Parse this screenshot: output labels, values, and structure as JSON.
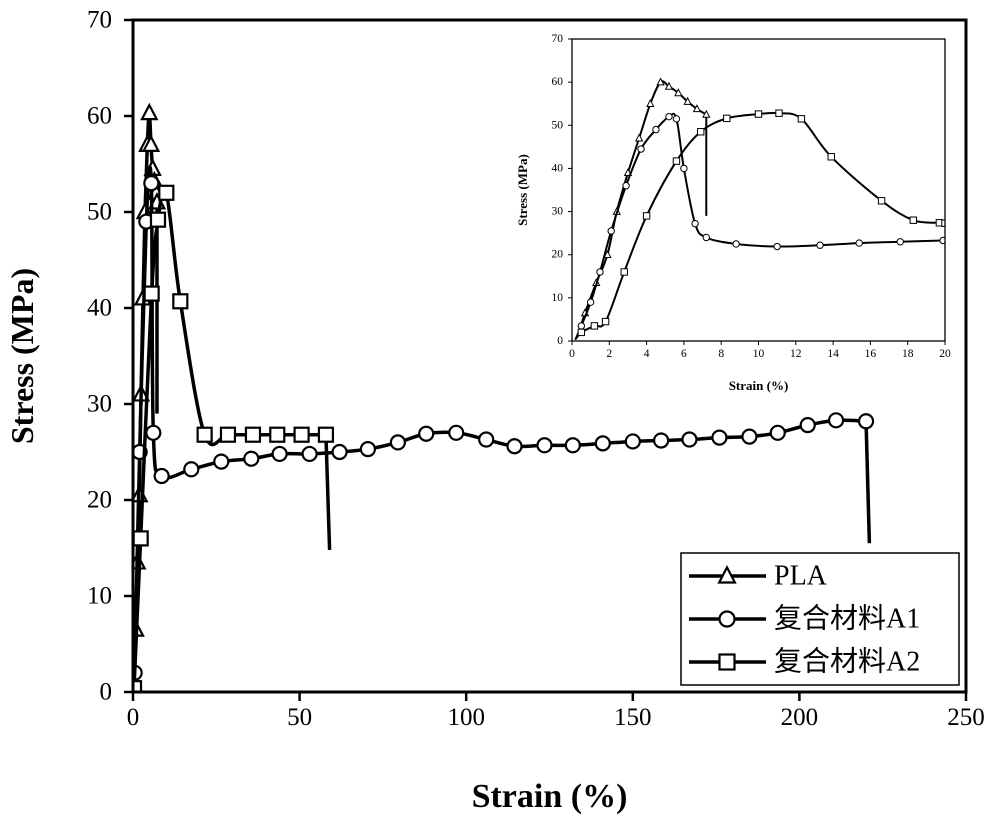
{
  "chart_data": [
    {
      "type": "line",
      "xlabel": "Strain (%)",
      "ylabel": "Stress (MPa)",
      "xlim": [
        0,
        250
      ],
      "ylim": [
        0,
        70
      ],
      "xticks": [
        0,
        50,
        100,
        150,
        200,
        250
      ],
      "yticks": [
        0,
        10,
        20,
        30,
        40,
        50,
        60,
        70
      ],
      "xtick_labels": [
        "0",
        "50",
        "100",
        "150",
        "200",
        "250"
      ],
      "ytick_labels": [
        "0",
        "10",
        "20",
        "30",
        "40",
        "50",
        "60",
        "70"
      ],
      "grid": false,
      "legend": {
        "placement": "bottom-right",
        "entries": [
          {
            "label": "PLA",
            "marker": "triangle"
          },
          {
            "label": "复合材料A1",
            "marker": "circle"
          },
          {
            "label": "复合材料A2",
            "marker": "square"
          }
        ]
      },
      "series": [
        {
          "name": "PLA",
          "marker": "triangle",
          "points": [
            [
              0.3,
              0.8
            ],
            [
              0.8,
              6.5
            ],
            [
              1.3,
              13.5
            ],
            [
              1.9,
              20.5
            ],
            [
              2.4,
              31
            ],
            [
              3,
              41
            ],
            [
              3.6,
              50
            ],
            [
              4.3,
              57
            ],
            [
              4.9,
              60.3
            ],
            [
              5.4,
              57
            ],
            [
              5.9,
              54.5
            ],
            [
              6.4,
              53.2
            ],
            [
              6.9,
              52
            ],
            [
              7.2,
              51
            ]
          ],
          "end": [
            7.2,
            29
          ]
        },
        {
          "name": "复合材料A1",
          "marker": "circle",
          "points": [
            [
              0.5,
              2
            ],
            [
              2,
              25
            ],
            [
              4,
              49
            ],
            [
              5.5,
              53
            ],
            [
              6.1,
              27
            ],
            [
              8.6,
              22.5
            ],
            [
              17.5,
              23.2
            ],
            [
              26.5,
              24
            ],
            [
              35.5,
              24.3
            ],
            [
              44,
              24.8
            ],
            [
              53,
              24.8
            ],
            [
              62,
              25
            ],
            [
              70.5,
              25.3
            ],
            [
              79.5,
              26
            ],
            [
              88,
              26.9
            ],
            [
              97,
              27
            ],
            [
              106,
              26.3
            ],
            [
              114.5,
              25.6
            ],
            [
              123.5,
              25.7
            ],
            [
              132,
              25.7
            ],
            [
              141,
              25.9
            ],
            [
              150,
              26.1
            ],
            [
              158.5,
              26.2
            ],
            [
              167,
              26.3
            ],
            [
              176,
              26.5
            ],
            [
              185,
              26.6
            ],
            [
              193.5,
              27
            ],
            [
              202.5,
              27.8
            ],
            [
              211,
              28.3
            ],
            [
              220,
              28.2
            ]
          ],
          "end": [
            221,
            15.5
          ]
        },
        {
          "name": "复合材料A2",
          "marker": "square",
          "points": [
            [
              0.3,
              0.4
            ],
            [
              2.3,
              16
            ],
            [
              5.6,
              41.5
            ],
            [
              7.5,
              49.2
            ],
            [
              10,
              52
            ],
            [
              14.2,
              40.7
            ],
            [
              21.5,
              26.8
            ],
            [
              28.5,
              26.8
            ],
            [
              36,
              26.8
            ],
            [
              43.3,
              26.8
            ],
            [
              50.6,
              26.8
            ],
            [
              57.9,
              26.8
            ]
          ],
          "end": [
            59,
            14.8
          ]
        }
      ]
    },
    {
      "type": "line",
      "xlabel": "Strain (%)",
      "ylabel": "Stress (MPa)",
      "xlim": [
        0,
        20
      ],
      "ylim": [
        0,
        70
      ],
      "xticks": [
        0,
        2,
        4,
        6,
        8,
        10,
        12,
        14,
        16,
        18,
        20
      ],
      "yticks": [
        0,
        10,
        20,
        30,
        40,
        50,
        60,
        70
      ],
      "xtick_labels": [
        "0",
        "2",
        "4",
        "6",
        "8",
        "10",
        "12",
        "14",
        "16",
        "18",
        "20"
      ],
      "ytick_labels": [
        "0",
        "10",
        "20",
        "30",
        "40",
        "50",
        "60",
        "70"
      ],
      "grid": false,
      "series": [
        {
          "name": "PLA",
          "marker": "triangle",
          "points": [
            [
              0.3,
              1
            ],
            [
              0.7,
              6.5
            ],
            [
              1.3,
              13.5
            ],
            [
              1.9,
              20
            ],
            [
              2.4,
              30
            ],
            [
              3,
              39
            ],
            [
              3.6,
              47
            ],
            [
              4.2,
              55
            ],
            [
              4.75,
              60
            ],
            [
              5.2,
              59
            ],
            [
              5.7,
              57.5
            ],
            [
              6.2,
              55.5
            ],
            [
              6.7,
              53.8
            ],
            [
              7.2,
              52.5
            ]
          ],
          "end": [
            7.2,
            29
          ]
        },
        {
          "name": "复合材料A1",
          "marker": "circle",
          "points": [
            [
              0.2,
              0.5
            ],
            [
              0.5,
              3.5
            ],
            [
              1,
              9
            ],
            [
              1.5,
              16
            ],
            [
              2.1,
              25.5
            ],
            [
              2.9,
              36
            ],
            [
              3.7,
              44.5
            ],
            [
              4.5,
              49
            ],
            [
              5.2,
              52
            ],
            [
              5.6,
              51.5
            ],
            [
              6,
              40
            ],
            [
              6.6,
              27.2
            ],
            [
              7.2,
              24
            ],
            [
              8.8,
              22.5
            ],
            [
              11,
              21.9
            ],
            [
              13.3,
              22.2
            ],
            [
              15.4,
              22.7
            ],
            [
              17.6,
              23
            ],
            [
              19.9,
              23.3
            ]
          ],
          "end": null
        },
        {
          "name": "复合材料A2",
          "marker": "square",
          "points": [
            [
              0.2,
              0.5
            ],
            [
              0.5,
              2
            ],
            [
              1.2,
              3.5
            ],
            [
              1.8,
              4.5
            ],
            [
              2.8,
              16
            ],
            [
              4,
              29
            ],
            [
              5.6,
              41.7
            ],
            [
              6.9,
              48.5
            ],
            [
              8.3,
              51.6
            ],
            [
              10,
              52.6
            ],
            [
              11.1,
              52.8
            ],
            [
              12.3,
              51.5
            ],
            [
              13.9,
              42.7
            ],
            [
              16.6,
              32.5
            ],
            [
              18.3,
              28
            ],
            [
              19.7,
              27.4
            ],
            [
              20,
              27.3
            ]
          ],
          "end": null
        }
      ]
    }
  ]
}
